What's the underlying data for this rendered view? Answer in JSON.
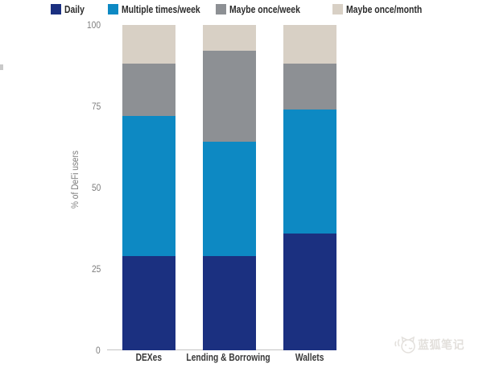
{
  "chart_data": {
    "type": "bar",
    "stacked": true,
    "categories": [
      "DEXes",
      "Lending & Borrowing",
      "Wallets"
    ],
    "series": [
      {
        "name": "Daily",
        "color": "#1b3080",
        "values": [
          29,
          29,
          36
        ]
      },
      {
        "name": "Multiple times/week",
        "color": "#0d89c3",
        "values": [
          43,
          35,
          38
        ]
      },
      {
        "name": "Maybe once/week",
        "color": "#8d9094",
        "values": [
          16,
          28,
          14
        ]
      },
      {
        "name": "Maybe once/month",
        "color": "#d8d0c5",
        "values": [
          12,
          8,
          12
        ]
      }
    ],
    "title": "",
    "xlabel": "",
    "ylabel": "% of DeFi users",
    "yticks": [
      0,
      25,
      50,
      75,
      100
    ],
    "ylim": [
      0,
      100
    ],
    "legend_position": "top",
    "grid": false
  },
  "watermark": {
    "text": "蓝狐笔记",
    "icon": "fox-icon"
  }
}
